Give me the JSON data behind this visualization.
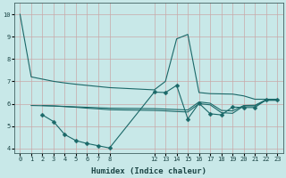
{
  "xlabel": "Humidex (Indice chaleur)",
  "background_color": "#c8e8e8",
  "line_color": "#1a6868",
  "s1x": [
    0,
    1,
    2,
    3,
    4,
    5,
    6,
    7,
    8,
    12,
    13,
    14,
    15,
    16,
    17,
    18,
    19,
    20,
    21,
    22,
    23
  ],
  "s1y": [
    10.0,
    7.2,
    7.1,
    7.0,
    6.93,
    6.87,
    6.82,
    6.77,
    6.72,
    6.62,
    7.0,
    8.9,
    9.1,
    6.5,
    6.45,
    6.44,
    6.43,
    6.35,
    6.2,
    6.2,
    6.2
  ],
  "s2x": [
    1,
    2,
    3,
    4,
    5,
    6,
    7,
    8,
    12,
    13,
    14,
    15,
    16,
    17,
    18,
    19,
    20,
    21,
    22,
    23
  ],
  "s2y": [
    5.92,
    5.91,
    5.9,
    5.88,
    5.86,
    5.84,
    5.82,
    5.8,
    5.78,
    5.76,
    5.74,
    5.72,
    6.08,
    6.02,
    5.7,
    5.68,
    5.92,
    5.93,
    6.18,
    6.18
  ],
  "s3x": [
    2,
    3,
    4,
    5,
    6,
    7,
    8,
    12,
    13,
    14,
    15,
    16,
    17,
    18,
    19,
    20,
    21,
    22,
    23
  ],
  "s3y": [
    5.92,
    5.9,
    5.87,
    5.84,
    5.8,
    5.77,
    5.73,
    5.7,
    5.68,
    5.65,
    5.63,
    6.0,
    5.95,
    5.6,
    5.57,
    5.9,
    5.9,
    6.15,
    6.15
  ],
  "s4x": [
    2,
    3,
    4,
    5,
    6,
    7,
    8,
    12,
    13,
    14,
    15,
    16,
    17,
    18,
    19,
    20,
    21,
    22,
    23
  ],
  "s4y": [
    5.5,
    5.2,
    4.62,
    4.35,
    4.22,
    4.12,
    4.02,
    6.52,
    6.5,
    6.82,
    5.32,
    6.02,
    5.55,
    5.5,
    5.85,
    5.83,
    5.83,
    6.18,
    6.18
  ],
  "xlim": [
    -0.5,
    23.5
  ],
  "ylim": [
    3.8,
    10.5
  ],
  "yticks": [
    4,
    5,
    6,
    7,
    8,
    9,
    10
  ],
  "xtick_positions": [
    0,
    1,
    2,
    3,
    4,
    5,
    6,
    7,
    8,
    12,
    13,
    14,
    15,
    16,
    17,
    18,
    19,
    20,
    21,
    22,
    23
  ],
  "xtick_labels": [
    "0",
    "1",
    "2",
    "3",
    "4",
    "5",
    "6",
    "7",
    "8",
    "12",
    "13",
    "14",
    "15",
    "16",
    "17",
    "18",
    "19",
    "20",
    "21",
    "22",
    "23"
  ],
  "linewidth": 0.8,
  "marker_size": 2.5,
  "tick_fontsize": 5,
  "xlabel_fontsize": 6.5
}
